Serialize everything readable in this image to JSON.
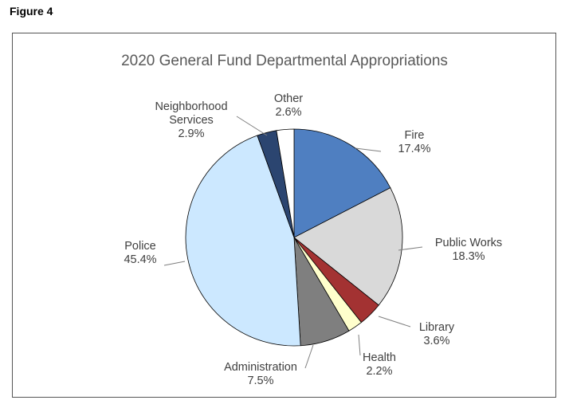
{
  "figure_label": "Figure 4",
  "chart_data": {
    "type": "pie",
    "title": "2020 General Fund Departmental Appropriations",
    "slices": [
      {
        "label": [
          "Fire"
        ],
        "pct": "17.4%",
        "value": 17.4,
        "color": "#4f7fc1"
      },
      {
        "label": [
          "Public Works"
        ],
        "pct": "18.3%",
        "value": 18.3,
        "color": "#d9d9d9"
      },
      {
        "label": [
          "Library"
        ],
        "pct": "3.6%",
        "value": 3.6,
        "color": "#a33232"
      },
      {
        "label": [
          "Health"
        ],
        "pct": "2.2%",
        "value": 2.2,
        "color": "#ffffcc"
      },
      {
        "label": [
          "Administration"
        ],
        "pct": "7.5%",
        "value": 7.5,
        "color": "#7f7f7f"
      },
      {
        "label": [
          "Police"
        ],
        "pct": "45.4%",
        "value": 45.4,
        "color": "#cce8ff"
      },
      {
        "label": [
          "Neighborhood",
          "Services"
        ],
        "pct": "2.9%",
        "value": 2.9,
        "color": "#2b4570"
      },
      {
        "label": [
          "Other"
        ],
        "pct": "2.6%",
        "value": 2.6,
        "color": "#ffffff"
      }
    ]
  }
}
